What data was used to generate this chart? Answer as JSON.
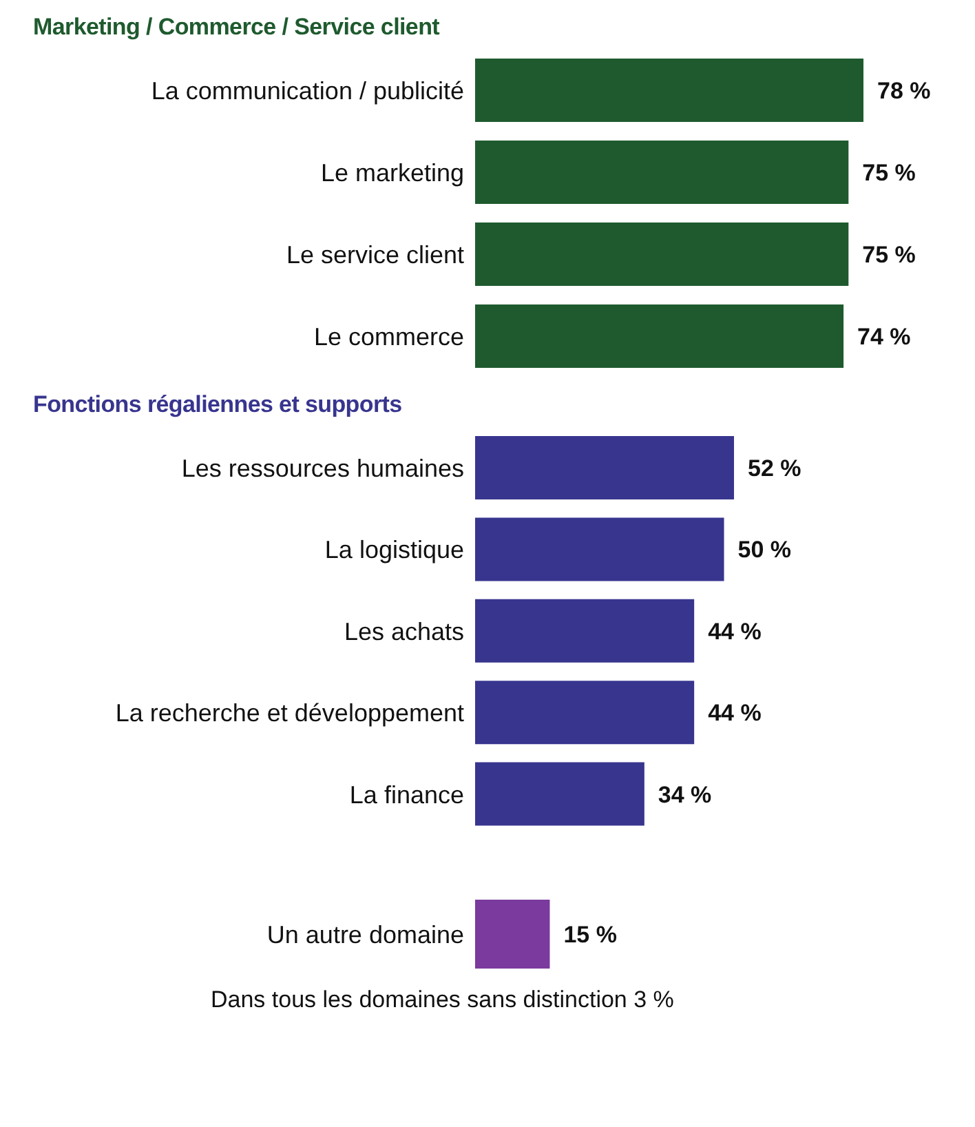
{
  "chart_data": [
    {
      "type": "bar",
      "orientation": "horizontal",
      "title": "Marketing / Commerce / Service client",
      "categories": [
        "La communication / publicité",
        "Le marketing",
        "Le service client",
        "Le commerce"
      ],
      "values": [
        78,
        75,
        75,
        74
      ],
      "value_labels": [
        "78 %",
        "75 %",
        "75 %",
        "74 %"
      ],
      "color": "#1e5a2e",
      "tick_labels": "y",
      "grid": false,
      "legend": false
    },
    {
      "type": "bar",
      "orientation": "horizontal",
      "title": "Fonctions régaliennes et supports",
      "categories": [
        "Les ressources humaines",
        "La logistique",
        "Les achats",
        "La recherche et développement",
        "La finance"
      ],
      "values": [
        52,
        50,
        44,
        44,
        34
      ],
      "value_labels": [
        "52 %",
        "50 %",
        "44 %",
        "44 %",
        "34 %"
      ],
      "color": "#38358f",
      "tick_labels": "y",
      "grid": false,
      "legend": false
    },
    {
      "type": "bar",
      "orientation": "horizontal",
      "categories": [
        "Un autre domaine"
      ],
      "values": [
        15
      ],
      "value_labels": [
        "15 %"
      ],
      "color": "#7b3a9e",
      "tick_labels": "y",
      "grid": false,
      "legend": false,
      "annotations": [
        "Dans tous les domaines sans distinction 3 %"
      ]
    }
  ]
}
